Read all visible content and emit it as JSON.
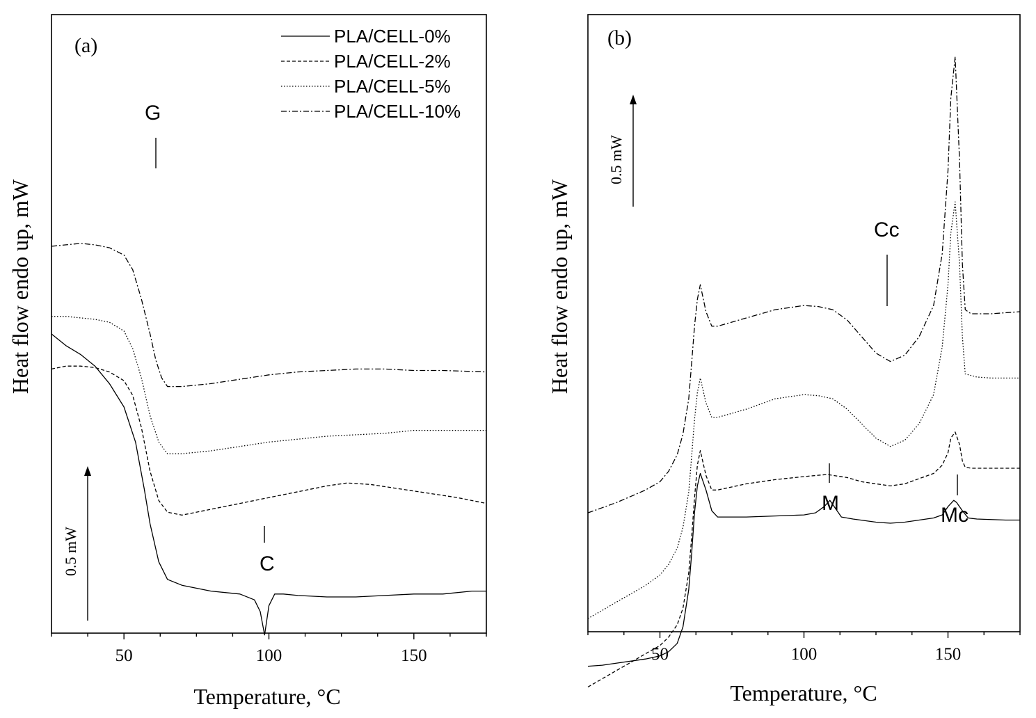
{
  "chart_data": [
    {
      "type": "line",
      "panel_label": "(a)",
      "xlabel": "Temperature, °C",
      "ylabel": "Heat flow endo up, mW",
      "xlim": [
        25,
        175
      ],
      "xticks": [
        50,
        100,
        150
      ],
      "xticks_labels": [
        "50",
        "100",
        "150"
      ],
      "y_units": "mW (offset, arbitrary zero)",
      "scale_bar": {
        "label": "0.5 mW",
        "value": 0.5
      },
      "legend": {
        "position": "top-right",
        "entries": [
          "PLA/CELL-0%",
          "PLA/CELL-2%",
          "PLA/CELL-5%",
          "PLA/CELL-10%"
        ]
      },
      "annotations": [
        {
          "text": "G",
          "x": 61
        },
        {
          "text": "C",
          "x": 98.5
        }
      ],
      "series": [
        {
          "name": "PLA/CELL-0%",
          "style": "solid",
          "x": [
            25,
            30,
            35,
            40,
            45,
            50,
            54,
            57,
            59,
            62,
            65,
            70,
            80,
            90,
            95,
            97,
            98.5,
            100,
            102,
            105,
            110,
            120,
            130,
            140,
            150,
            160,
            170,
            175
          ],
          "y": [
            1.05,
            1.01,
            0.98,
            0.94,
            0.88,
            0.8,
            0.68,
            0.52,
            0.4,
            0.27,
            0.21,
            0.19,
            0.17,
            0.16,
            0.14,
            0.1,
            0.02,
            0.12,
            0.16,
            0.16,
            0.155,
            0.15,
            0.15,
            0.155,
            0.16,
            0.16,
            0.17,
            0.17
          ]
        },
        {
          "name": "PLA/CELL-2%",
          "style": "dashed",
          "x": [
            25,
            30,
            35,
            40,
            45,
            50,
            53,
            56,
            59,
            62,
            65,
            70,
            80,
            90,
            100,
            110,
            120,
            127,
            135,
            145,
            155,
            165,
            175
          ],
          "y": [
            0.93,
            0.94,
            0.94,
            0.935,
            0.92,
            0.89,
            0.84,
            0.73,
            0.58,
            0.48,
            0.44,
            0.43,
            0.45,
            0.47,
            0.49,
            0.51,
            0.53,
            0.54,
            0.535,
            0.52,
            0.505,
            0.49,
            0.47
          ]
        },
        {
          "name": "PLA/CELL-5%",
          "style": "dotted",
          "x": [
            25,
            30,
            35,
            40,
            45,
            50,
            53,
            56,
            59,
            62,
            65,
            70,
            80,
            90,
            100,
            110,
            120,
            130,
            140,
            150,
            160,
            175
          ],
          "y": [
            1.11,
            1.11,
            1.105,
            1.1,
            1.09,
            1.06,
            1.0,
            0.9,
            0.77,
            0.68,
            0.64,
            0.64,
            0.65,
            0.665,
            0.68,
            0.69,
            0.7,
            0.705,
            0.71,
            0.72,
            0.72,
            0.72
          ]
        },
        {
          "name": "PLA/CELL-10%",
          "style": "dashdot",
          "x": [
            25,
            30,
            35,
            40,
            45,
            50,
            53,
            56,
            59,
            61,
            63,
            65,
            70,
            80,
            90,
            100,
            110,
            120,
            130,
            140,
            150,
            160,
            175
          ],
          "y": [
            1.35,
            1.355,
            1.36,
            1.355,
            1.345,
            1.32,
            1.27,
            1.17,
            1.05,
            0.96,
            0.9,
            0.87,
            0.87,
            0.88,
            0.895,
            0.91,
            0.92,
            0.925,
            0.93,
            0.93,
            0.925,
            0.925,
            0.92
          ]
        }
      ]
    },
    {
      "type": "line",
      "panel_label": "(b)",
      "xlabel": "Temperature, °C",
      "ylabel": "Heat flow endo up, mW",
      "xlim": [
        25,
        175
      ],
      "xticks": [
        50,
        100,
        150
      ],
      "xticks_labels": [
        "50",
        "100",
        "150"
      ],
      "y_units": "mW (offset, arbitrary zero)",
      "scale_bar": {
        "label": "0.5 mW",
        "value": 0.5
      },
      "annotations": [
        {
          "text": "Cc",
          "x": 130
        },
        {
          "text": "M",
          "x": 109
        },
        {
          "text": "Mc",
          "x": 152.5
        }
      ],
      "series": [
        {
          "name": "PLA/CELL-0%",
          "style": "solid",
          "x": [
            25,
            30,
            35,
            40,
            45,
            50,
            53,
            56,
            58,
            60,
            61,
            62,
            63,
            64,
            66,
            68,
            70,
            80,
            90,
            100,
            104,
            107,
            109,
            111,
            113,
            117,
            125,
            130,
            135,
            140,
            145,
            148,
            150,
            152,
            153,
            155,
            157,
            160,
            170,
            175
          ],
          "y": [
            0.31,
            0.315,
            0.325,
            0.335,
            0.345,
            0.36,
            0.38,
            0.42,
            0.5,
            0.68,
            0.85,
            1.05,
            1.18,
            1.24,
            1.16,
            1.06,
            1.03,
            1.03,
            1.035,
            1.04,
            1.05,
            1.08,
            1.11,
            1.07,
            1.03,
            1.02,
            1.005,
            1.0,
            1.005,
            1.015,
            1.025,
            1.04,
            1.08,
            1.11,
            1.1,
            1.06,
            1.025,
            1.02,
            1.015,
            1.015
          ]
        },
        {
          "name": "PLA/CELL-2%",
          "style": "dashed",
          "x": [
            25,
            30,
            35,
            40,
            45,
            50,
            53,
            56,
            58,
            60,
            61,
            62,
            63,
            64,
            66,
            68,
            70,
            80,
            90,
            100,
            108,
            115,
            120,
            125,
            130,
            135,
            140,
            145,
            148,
            150,
            151,
            152.5,
            154,
            155,
            156,
            158,
            165,
            175
          ],
          "y": [
            0.21,
            0.25,
            0.29,
            0.33,
            0.37,
            0.41,
            0.45,
            0.51,
            0.59,
            0.76,
            0.93,
            1.12,
            1.28,
            1.35,
            1.23,
            1.16,
            1.16,
            1.19,
            1.21,
            1.225,
            1.235,
            1.22,
            1.2,
            1.19,
            1.18,
            1.19,
            1.215,
            1.24,
            1.28,
            1.34,
            1.41,
            1.44,
            1.38,
            1.3,
            1.27,
            1.265,
            1.265,
            1.265
          ]
        },
        {
          "name": "PLA/CELL-5%",
          "style": "dotted",
          "x": [
            25,
            30,
            35,
            40,
            45,
            50,
            53,
            56,
            58,
            60,
            61,
            62,
            63,
            64,
            66,
            68,
            70,
            80,
            90,
            100,
            105,
            110,
            115,
            120,
            125,
            130,
            135,
            140,
            145,
            148,
            150,
            151,
            152.5,
            154,
            155,
            156,
            160,
            165,
            175
          ],
          "y": [
            0.54,
            0.58,
            0.62,
            0.66,
            0.7,
            0.75,
            0.8,
            0.88,
            0.98,
            1.15,
            1.32,
            1.5,
            1.63,
            1.7,
            1.58,
            1.51,
            1.51,
            1.55,
            1.6,
            1.62,
            1.615,
            1.6,
            1.55,
            1.48,
            1.41,
            1.37,
            1.4,
            1.48,
            1.62,
            1.85,
            2.15,
            2.4,
            2.55,
            2.25,
            1.9,
            1.72,
            1.705,
            1.7,
            1.7
          ]
        },
        {
          "name": "PLA/CELL-10%",
          "style": "dashdot",
          "x": [
            25,
            30,
            35,
            40,
            45,
            50,
            53,
            56,
            58,
            60,
            61,
            62,
            63,
            64,
            66,
            68,
            70,
            80,
            90,
            100,
            105,
            110,
            115,
            120,
            125,
            130,
            135,
            140,
            145,
            148,
            150,
            151,
            152.5,
            154,
            155,
            156,
            158,
            165,
            175
          ],
          "y": [
            1.05,
            1.075,
            1.1,
            1.13,
            1.16,
            1.2,
            1.25,
            1.33,
            1.43,
            1.6,
            1.77,
            1.95,
            2.08,
            2.15,
            2.02,
            1.95,
            1.95,
            1.99,
            2.03,
            2.05,
            2.045,
            2.03,
            1.98,
            1.9,
            1.82,
            1.78,
            1.81,
            1.9,
            2.05,
            2.3,
            2.7,
            3.05,
            3.25,
            2.75,
            2.25,
            2.03,
            2.01,
            2.01,
            2.02
          ]
        }
      ]
    }
  ]
}
